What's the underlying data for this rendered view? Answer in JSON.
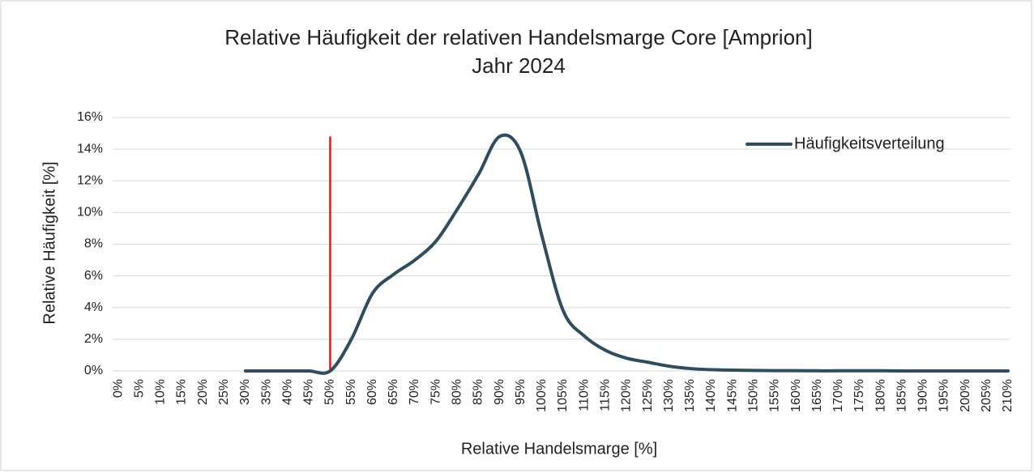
{
  "chart_data": {
    "type": "line",
    "title": "Relative Häufigkeit der relativen Handelsmarge Core [Amprion]",
    "subtitle": "Jahr 2024",
    "x_label": "Relative Handelsmarge [%]",
    "y_label": "Relative Häufigkeit [%]",
    "categories": [
      "0%",
      "5%",
      "10%",
      "15%",
      "20%",
      "25%",
      "30%",
      "35%",
      "40%",
      "45%",
      "50%",
      "55%",
      "60%",
      "65%",
      "70%",
      "75%",
      "80%",
      "85%",
      "90%",
      "95%",
      "100%",
      "105%",
      "110%",
      "115%",
      "120%",
      "125%",
      "130%",
      "135%",
      "140%",
      "145%",
      "150%",
      "155%",
      "160%",
      "165%",
      "170%",
      "175%",
      "180%",
      "185%",
      "190%",
      "195%",
      "200%",
      "205%",
      "210%"
    ],
    "series": [
      {
        "name": "Häufigkeitsverteilung",
        "color": "#2e4d5e",
        "values": [
          null,
          null,
          null,
          null,
          null,
          null,
          0,
          0,
          0,
          0,
          0,
          2.0,
          4.9,
          6.1,
          7.0,
          8.2,
          10.2,
          12.4,
          14.8,
          13.8,
          8.5,
          3.8,
          2.2,
          1.3,
          0.8,
          0.55,
          0.3,
          0.15,
          0.08,
          0.05,
          0.03,
          0.02,
          0.02,
          0.01,
          0.01,
          0.01,
          0.01,
          0,
          0,
          0,
          0,
          0,
          0
        ]
      }
    ],
    "reference_line": {
      "x": "50%",
      "top": 14.8,
      "color": "#e31a1c"
    },
    "ylim": [
      0,
      16
    ],
    "yticks": [
      {
        "value": 0,
        "label": "0%"
      },
      {
        "value": 2,
        "label": "2%"
      },
      {
        "value": 4,
        "label": "4%"
      },
      {
        "value": 6,
        "label": "6%"
      },
      {
        "value": 8,
        "label": "8%"
      },
      {
        "value": 10,
        "label": "10%"
      },
      {
        "value": 12,
        "label": "12%"
      },
      {
        "value": 14,
        "label": "14%"
      },
      {
        "value": 16,
        "label": "16%"
      }
    ],
    "grid": true,
    "legend": "top-right"
  }
}
